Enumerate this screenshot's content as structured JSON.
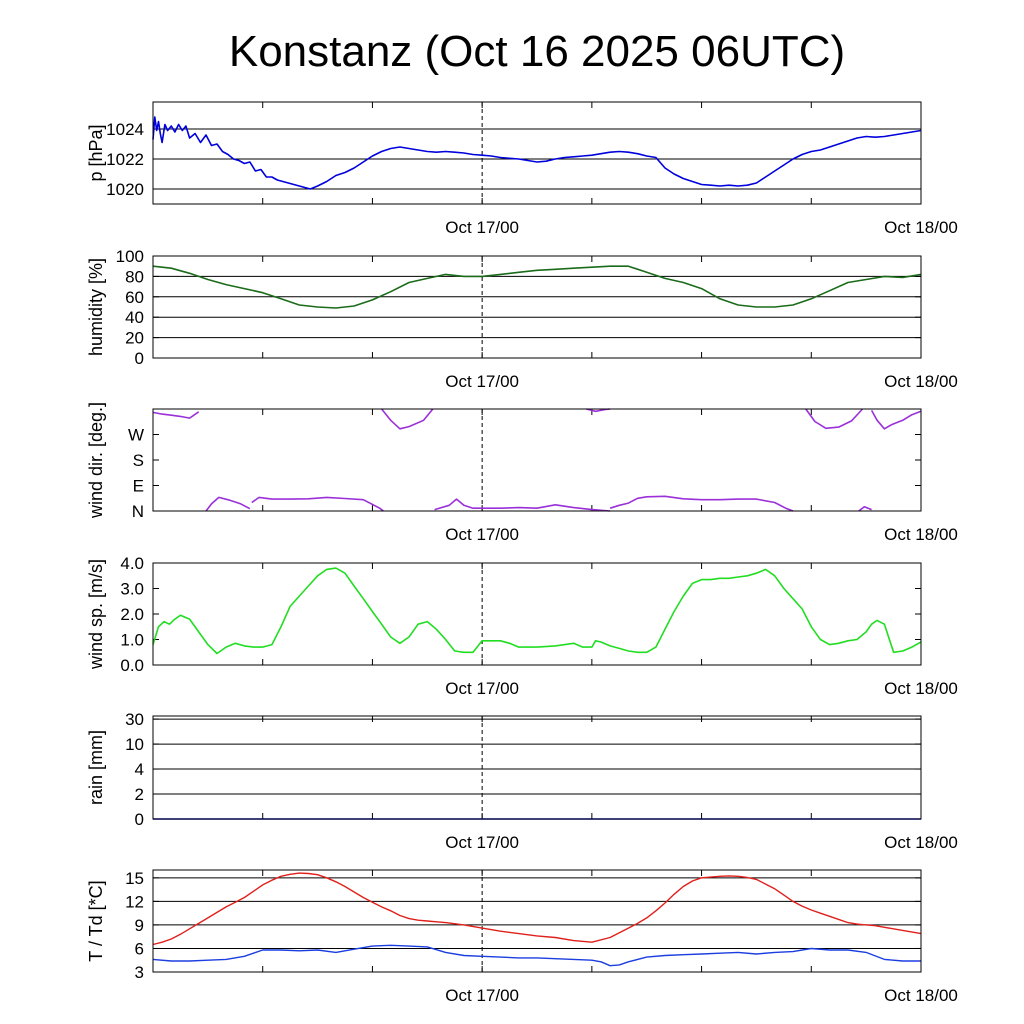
{
  "title": "Konstanz (Oct 16 2025 06UTC)",
  "x_axis": {
    "unit": "hours from Oct 16 06UTC",
    "range": [
      0,
      42
    ],
    "minor_tick_every_hours": 6,
    "dashed_marker_at": 18,
    "date_labels": [
      {
        "text": "Oct 17/00",
        "at": 18
      },
      {
        "text": "Oct 18/00",
        "at": 42
      }
    ]
  },
  "chart_data": [
    {
      "type": "line",
      "id": "pressure",
      "ylabel": "p [hPa]",
      "ylim": [
        1019,
        1025.8
      ],
      "scale": "linear",
      "tick_labels": [
        "1020",
        "1022",
        "1024"
      ],
      "tick_values": [
        1020,
        1022,
        1024
      ],
      "gridlines": [
        1020,
        1022,
        1024
      ],
      "color": "#0000dd",
      "x": [
        0,
        0.1,
        0.2,
        0.3,
        0.4,
        0.5,
        0.65,
        0.8,
        1.0,
        1.2,
        1.4,
        1.6,
        1.8,
        2.0,
        2.3,
        2.6,
        2.9,
        3.2,
        3.5,
        3.8,
        4.1,
        4.4,
        4.7,
        5.0,
        5.3,
        5.6,
        5.9,
        6.2,
        6.5,
        6.8,
        7.1,
        7.4,
        7.7,
        8.0,
        8.3,
        8.6,
        9.0,
        9.5,
        10.0,
        10.5,
        11.0,
        11.5,
        12.0,
        12.5,
        13.0,
        13.5,
        14.0,
        14.5,
        15.0,
        15.5,
        16.0,
        16.5,
        17.0,
        17.5,
        18.0,
        18.5,
        19.0,
        19.5,
        20.0,
        20.5,
        21.0,
        21.5,
        22.0,
        22.5,
        23.0,
        23.5,
        24.0,
        24.5,
        25.0,
        25.5,
        26.0,
        26.5,
        27.0,
        27.5,
        28.0,
        28.5,
        29.0,
        29.5,
        30.0,
        30.5,
        31.0,
        31.5,
        32.0,
        32.5,
        33.0,
        33.5,
        34.0,
        34.5,
        35.0,
        35.5,
        36.0,
        36.5,
        37.0,
        37.5,
        38.0,
        38.5,
        39.0,
        39.5,
        40.0,
        40.5,
        41.0,
        41.5,
        42.0
      ],
      "values": [
        1023.3,
        1024.8,
        1023.9,
        1024.5,
        1023.7,
        1023.1,
        1024.3,
        1023.9,
        1024.2,
        1023.8,
        1024.3,
        1023.9,
        1024.2,
        1023.4,
        1023.7,
        1023.1,
        1023.6,
        1022.9,
        1023.0,
        1022.5,
        1022.3,
        1022.0,
        1021.9,
        1021.7,
        1021.8,
        1021.2,
        1021.3,
        1020.8,
        1020.8,
        1020.6,
        1020.5,
        1020.4,
        1020.3,
        1020.2,
        1020.1,
        1020.0,
        1020.2,
        1020.5,
        1020.9,
        1021.1,
        1021.4,
        1021.8,
        1022.2,
        1022.5,
        1022.7,
        1022.8,
        1022.7,
        1022.6,
        1022.5,
        1022.45,
        1022.5,
        1022.45,
        1022.4,
        1022.3,
        1022.25,
        1022.2,
        1022.1,
        1022.05,
        1022.0,
        1021.9,
        1021.8,
        1021.85,
        1022.0,
        1022.1,
        1022.15,
        1022.2,
        1022.25,
        1022.35,
        1022.45,
        1022.5,
        1022.45,
        1022.35,
        1022.2,
        1022.1,
        1021.4,
        1021.0,
        1020.7,
        1020.5,
        1020.3,
        1020.25,
        1020.2,
        1020.25,
        1020.2,
        1020.25,
        1020.4,
        1020.8,
        1021.2,
        1021.6,
        1022.0,
        1022.3,
        1022.5,
        1022.6,
        1022.8,
        1023.0,
        1023.2,
        1023.4,
        1023.5,
        1023.45,
        1023.5,
        1023.6,
        1023.7,
        1023.8,
        1023.9
      ]
    },
    {
      "type": "line",
      "id": "humidity",
      "ylabel": "humidity [%]",
      "ylim": [
        0,
        100
      ],
      "scale": "linear",
      "tick_labels": [
        "0",
        "20",
        "40",
        "60",
        "80",
        "100"
      ],
      "tick_values": [
        0,
        20,
        40,
        60,
        80,
        100
      ],
      "gridlines": [
        20,
        40,
        60,
        80
      ],
      "color": "#1a6b1a",
      "x": [
        0,
        1,
        2,
        3,
        4,
        5,
        6,
        7,
        8,
        9,
        10,
        11,
        12,
        13,
        14,
        15,
        16,
        17,
        18,
        19,
        20,
        21,
        22,
        23,
        24,
        25,
        26,
        27,
        28,
        29,
        30,
        31,
        32,
        33,
        34,
        35,
        36,
        37,
        38,
        39,
        40,
        41,
        42
      ],
      "values": [
        90,
        88,
        83,
        77,
        72,
        68,
        64,
        58,
        52,
        50,
        49,
        51,
        57,
        65,
        74,
        78,
        82,
        80,
        80,
        82,
        84,
        86,
        87,
        88,
        89,
        90,
        90,
        84,
        78,
        74,
        68,
        58,
        52,
        50,
        50,
        52,
        58,
        66,
        74,
        77,
        80,
        79,
        82
      ]
    },
    {
      "type": "scatter",
      "id": "wind_direction",
      "ylabel": "wind dir. [deg.]",
      "ylim": [
        0,
        360
      ],
      "scale": "linear",
      "tick_labels": [
        "N",
        "E",
        "S",
        "W"
      ],
      "tick_values": [
        0,
        90,
        180,
        270
      ],
      "gridlines": [],
      "color": "#9b30d9",
      "segments": [
        {
          "x": [
            0,
            0.5,
            1.0,
            1.5,
            2.0,
            2.5
          ],
          "values": [
            348,
            342,
            338,
            334,
            328,
            350
          ]
        },
        {
          "x": [
            2.9,
            3.2,
            3.6,
            4.2,
            4.8,
            5.3
          ],
          "values": [
            0,
            25,
            48,
            38,
            25,
            8
          ]
        },
        {
          "x": [
            5.4,
            5.8,
            6.5,
            7.5,
            8.5,
            9.5,
            10.5,
            11.5,
            12.4,
            12.6
          ],
          "values": [
            30,
            48,
            42,
            42,
            43,
            48,
            44,
            40,
            10,
            0
          ]
        },
        {
          "x": [
            12.5,
            13.0,
            13.5,
            14.0,
            14.8,
            15.3
          ],
          "values": [
            360,
            320,
            290,
            298,
            320,
            360
          ]
        },
        {
          "x": [
            15.4,
            16.2,
            16.6,
            17.0,
            17.5,
            18.0,
            19.0,
            20.0,
            21.0,
            22.0,
            23.0,
            24.0,
            25.0
          ],
          "values": [
            5,
            20,
            42,
            20,
            10,
            10,
            10,
            12,
            10,
            22,
            12,
            5,
            0
          ]
        },
        {
          "x": [
            23.7,
            24.2,
            24.7,
            25.0
          ],
          "values": [
            360,
            352,
            358,
            360
          ]
        },
        {
          "x": [
            25.0,
            25.5,
            26.0,
            26.5,
            27.0,
            28.0,
            29.0,
            30.0,
            31.0,
            32.0,
            33.0,
            34.0,
            34.6,
            35.0
          ],
          "values": [
            10,
            20,
            28,
            45,
            50,
            52,
            43,
            40,
            40,
            42,
            42,
            30,
            10,
            0
          ]
        },
        {
          "x": [
            35.7,
            36.2,
            36.8,
            37.5,
            38.2,
            38.8
          ],
          "values": [
            360,
            316,
            292,
            296,
            318,
            360
          ]
        },
        {
          "x": [
            38.6,
            38.9,
            39.3
          ],
          "values": [
            0,
            15,
            5
          ]
        },
        {
          "x": [
            39.3,
            39.6,
            40.0,
            40.4,
            41.0,
            41.5,
            42.0
          ],
          "values": [
            355,
            320,
            290,
            305,
            320,
            340,
            352
          ]
        }
      ]
    },
    {
      "type": "line",
      "id": "wind_speed",
      "ylabel": "wind sp. [m/s]",
      "ylim": [
        0,
        4
      ],
      "scale": "linear",
      "tick_labels": [
        "0.0",
        "1.0",
        "2.0",
        "3.0",
        "4.0"
      ],
      "tick_values": [
        0,
        1,
        2,
        3,
        4
      ],
      "gridlines": [],
      "color": "#22dd22",
      "x": [
        0,
        0.3,
        0.6,
        0.9,
        1.2,
        1.5,
        2.0,
        2.5,
        3.0,
        3.5,
        4.0,
        4.5,
        5.0,
        5.5,
        6.0,
        6.5,
        7.0,
        7.5,
        8.0,
        8.5,
        9.0,
        9.5,
        10.0,
        10.5,
        11.0,
        11.5,
        12.0,
        12.5,
        13.0,
        13.5,
        14.0,
        14.5,
        15.0,
        15.5,
        16.0,
        16.5,
        17.0,
        17.5,
        18.0,
        18.5,
        19.0,
        19.5,
        20.0,
        21.0,
        22.0,
        23.0,
        23.5,
        24.0,
        24.2,
        24.5,
        25.0,
        25.5,
        26.0,
        26.5,
        27.0,
        27.5,
        28.0,
        28.5,
        29.0,
        29.5,
        30.0,
        30.5,
        31.0,
        31.5,
        32.0,
        32.5,
        33.0,
        33.5,
        34.0,
        34.5,
        35.0,
        35.5,
        36.0,
        36.5,
        37.0,
        37.5,
        38.0,
        38.5,
        39.0,
        39.3,
        39.6,
        40.0,
        40.5,
        41.0,
        41.5,
        42.0
      ],
      "values": [
        0.8,
        1.5,
        1.7,
        1.6,
        1.8,
        1.95,
        1.8,
        1.3,
        0.8,
        0.45,
        0.7,
        0.85,
        0.75,
        0.7,
        0.7,
        0.8,
        1.5,
        2.3,
        2.7,
        3.1,
        3.5,
        3.75,
        3.8,
        3.6,
        3.1,
        2.6,
        2.1,
        1.6,
        1.1,
        0.85,
        1.1,
        1.6,
        1.7,
        1.4,
        1.0,
        0.55,
        0.5,
        0.5,
        0.95,
        0.95,
        0.95,
        0.85,
        0.7,
        0.7,
        0.75,
        0.85,
        0.7,
        0.7,
        0.95,
        0.9,
        0.75,
        0.65,
        0.55,
        0.5,
        0.5,
        0.7,
        1.4,
        2.1,
        2.7,
        3.2,
        3.35,
        3.35,
        3.4,
        3.4,
        3.45,
        3.5,
        3.6,
        3.75,
        3.5,
        3.0,
        2.6,
        2.2,
        1.5,
        1.0,
        0.8,
        0.85,
        0.95,
        1.0,
        1.3,
        1.6,
        1.75,
        1.6,
        0.5,
        0.55,
        0.7,
        0.9
      ]
    },
    {
      "type": "line",
      "id": "rain",
      "ylabel": "rain [mm]",
      "ylim": [
        0,
        30
      ],
      "scale": "nonlinear",
      "tick_labels": [
        "0",
        "2",
        "4",
        "10",
        "30"
      ],
      "tick_values": [
        0,
        2,
        4,
        10,
        30
      ],
      "gridlines": [
        2,
        4,
        10,
        30
      ],
      "color": "#0000dd",
      "x": [
        0,
        42
      ],
      "values": [
        0,
        0
      ]
    },
    {
      "type": "line",
      "id": "temperature_dewpoint",
      "ylabel": "T / Td [*C]",
      "ylim": [
        3,
        16
      ],
      "scale": "linear",
      "tick_labels": [
        "3",
        "6",
        "9",
        "12",
        "15"
      ],
      "tick_values": [
        3,
        6,
        9,
        12,
        15
      ],
      "gridlines": [
        6,
        9,
        12,
        15
      ],
      "series": [
        {
          "name": "T",
          "color": "#e0201b",
          "x": [
            0,
            0.5,
            1,
            1.5,
            2,
            2.5,
            3,
            3.5,
            4,
            4.5,
            5,
            5.5,
            6,
            6.5,
            7,
            7.5,
            8,
            8.5,
            9,
            9.5,
            10,
            10.5,
            11,
            11.5,
            12,
            12.5,
            13,
            13.5,
            14,
            14.5,
            15,
            15.5,
            16,
            17,
            18,
            19,
            20,
            21,
            22,
            23,
            24,
            25,
            26,
            26.5,
            27,
            27.5,
            28,
            28.5,
            29,
            29.5,
            30,
            30.5,
            31,
            31.5,
            32,
            32.5,
            33,
            33.5,
            34,
            34.5,
            35,
            35.5,
            36,
            36.5,
            37,
            37.5,
            38,
            38.5,
            39,
            39.5,
            40,
            41,
            42
          ],
          "values": [
            6.5,
            6.8,
            7.2,
            7.8,
            8.5,
            9.2,
            9.9,
            10.6,
            11.3,
            11.9,
            12.5,
            13.3,
            14.1,
            14.7,
            15.2,
            15.45,
            15.6,
            15.55,
            15.4,
            15.0,
            14.5,
            13.9,
            13.2,
            12.5,
            11.9,
            11.3,
            10.8,
            10.2,
            9.8,
            9.6,
            9.5,
            9.4,
            9.3,
            9.0,
            8.6,
            8.2,
            7.9,
            7.6,
            7.4,
            7.0,
            6.8,
            7.4,
            8.6,
            9.2,
            9.9,
            10.8,
            11.8,
            12.9,
            13.9,
            14.6,
            15.0,
            15.1,
            15.2,
            15.25,
            15.2,
            15.05,
            14.8,
            14.2,
            13.6,
            12.8,
            12.0,
            11.4,
            10.9,
            10.5,
            10.1,
            9.7,
            9.3,
            9.1,
            9.0,
            8.9,
            8.7,
            8.3,
            7.9
          ]
        },
        {
          "name": "Td",
          "color": "#1a3ee0",
          "x": [
            0,
            1,
            2,
            3,
            4,
            5,
            6,
            7,
            8,
            9,
            10,
            11,
            12,
            13,
            14,
            15,
            16,
            17,
            18,
            19,
            20,
            21,
            22,
            23,
            24,
            24.5,
            25,
            25.5,
            26,
            27,
            28,
            29,
            30,
            31,
            32,
            33,
            34,
            35,
            36,
            37,
            38,
            39,
            40,
            41,
            42
          ],
          "values": [
            4.6,
            4.4,
            4.4,
            4.5,
            4.6,
            5.0,
            5.8,
            5.8,
            5.7,
            5.8,
            5.5,
            5.9,
            6.3,
            6.4,
            6.3,
            6.2,
            5.5,
            5.1,
            5.0,
            4.9,
            4.8,
            4.8,
            4.7,
            4.6,
            4.5,
            4.3,
            3.8,
            3.9,
            4.3,
            4.9,
            5.1,
            5.2,
            5.3,
            5.4,
            5.5,
            5.3,
            5.5,
            5.6,
            6.0,
            5.8,
            5.8,
            5.5,
            4.6,
            4.4,
            4.4
          ]
        }
      ]
    }
  ]
}
